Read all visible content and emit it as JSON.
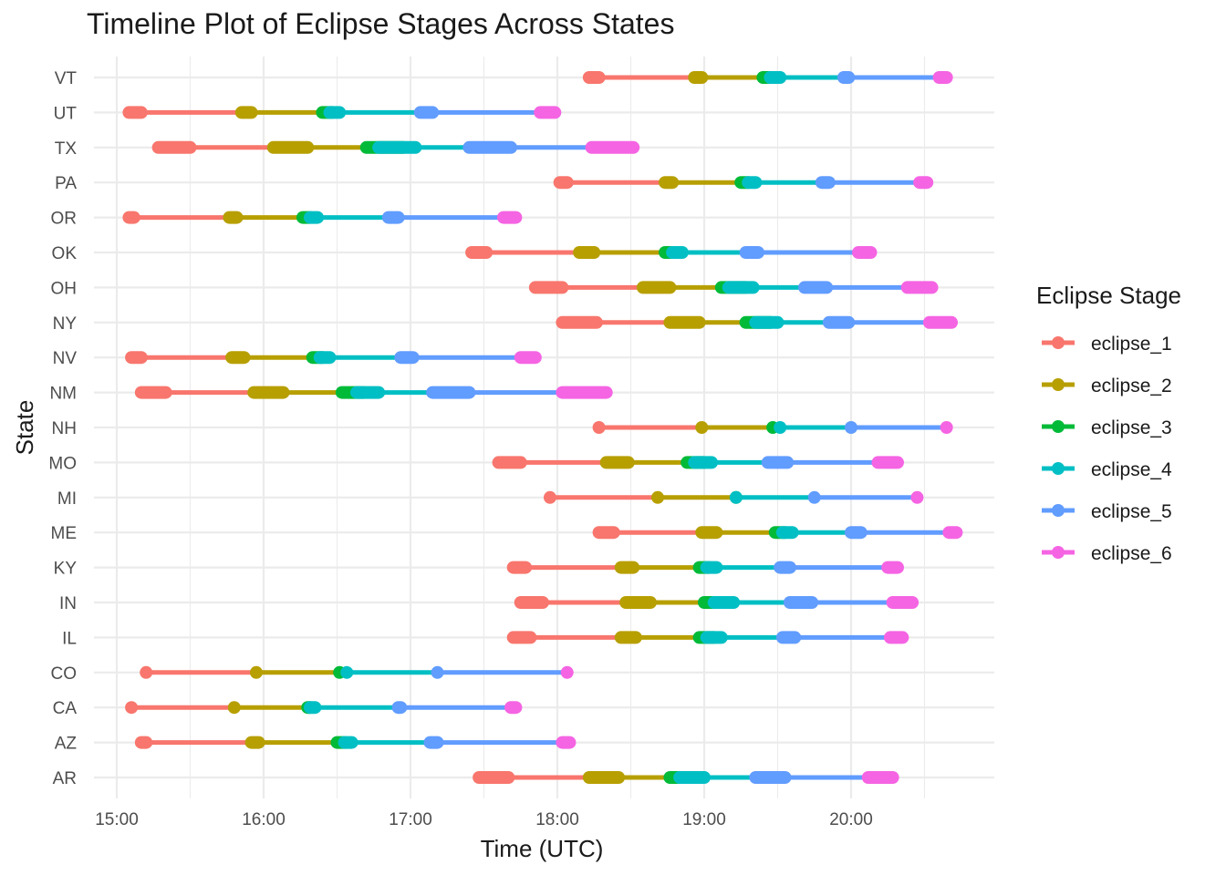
{
  "chart_data": {
    "type": "line",
    "title": "Timeline Plot of Eclipse Stages Across States",
    "xlabel": "Time (UTC)",
    "ylabel": "State",
    "x_ticks": [
      "15:00",
      "16:00",
      "17:00",
      "18:00",
      "19:00",
      "20:00"
    ],
    "xlim": [
      "14:58",
      "20:57"
    ],
    "grid": true,
    "legend": {
      "title": "Eclipse Stage",
      "placement": "right"
    },
    "series": [
      {
        "name": "eclipse_1",
        "color": "#F8766D"
      },
      {
        "name": "eclipse_2",
        "color": "#B79F00"
      },
      {
        "name": "eclipse_3",
        "color": "#00BA38"
      },
      {
        "name": "eclipse_4",
        "color": "#00BFC4"
      },
      {
        "name": "eclipse_5",
        "color": "#619CFF"
      },
      {
        "name": "eclipse_6",
        "color": "#F564E3"
      }
    ],
    "states": [
      {
        "state": "VT",
        "times": [
          [
            "18:13",
            "18:17"
          ],
          [
            "18:56",
            "18:59"
          ],
          [
            "19:24",
            "19:28"
          ],
          [
            "19:27",
            "19:31"
          ],
          [
            "19:57",
            "19:59"
          ],
          [
            "20:36",
            "20:39"
          ]
        ]
      },
      {
        "state": "UT",
        "times": [
          [
            "15:05",
            "15:10"
          ],
          [
            "15:51",
            "15:55"
          ],
          [
            "16:24",
            "16:28"
          ],
          [
            "16:27",
            "16:31"
          ],
          [
            "17:04",
            "17:09"
          ],
          [
            "17:53",
            "17:59"
          ]
        ]
      },
      {
        "state": "TX",
        "times": [
          [
            "15:17",
            "15:30"
          ],
          [
            "16:04",
            "16:18"
          ],
          [
            "16:42",
            "16:57"
          ],
          [
            "16:47",
            "17:02"
          ],
          [
            "17:24",
            "17:41"
          ],
          [
            "18:14",
            "18:31"
          ]
        ]
      },
      {
        "state": "PA",
        "times": [
          [
            "18:01",
            "18:04"
          ],
          [
            "18:44",
            "18:47"
          ],
          [
            "19:15",
            "19:18"
          ],
          [
            "19:18",
            "19:21"
          ],
          [
            "19:48",
            "19:51"
          ],
          [
            "20:28",
            "20:31"
          ]
        ]
      },
      {
        "state": "OR",
        "times": [
          [
            "15:05",
            "15:07"
          ],
          [
            "15:46",
            "15:49"
          ],
          [
            "16:16",
            "16:19"
          ],
          [
            "16:19",
            "16:22"
          ],
          [
            "16:51",
            "16:55"
          ],
          [
            "17:38",
            "17:43"
          ]
        ]
      },
      {
        "state": "OK",
        "times": [
          [
            "17:25",
            "17:31"
          ],
          [
            "18:09",
            "18:15"
          ],
          [
            "18:44",
            "18:48"
          ],
          [
            "18:47",
            "18:51"
          ],
          [
            "19:17",
            "19:22"
          ],
          [
            "20:03",
            "20:08"
          ]
        ]
      },
      {
        "state": "OH",
        "times": [
          [
            "17:51",
            "18:02"
          ],
          [
            "18:35",
            "18:46"
          ],
          [
            "19:07",
            "19:17"
          ],
          [
            "19:10",
            "19:20"
          ],
          [
            "19:41",
            "19:50"
          ],
          [
            "20:23",
            "20:33"
          ]
        ]
      },
      {
        "state": "NY",
        "times": [
          [
            "18:02",
            "18:16"
          ],
          [
            "18:46",
            "18:58"
          ],
          [
            "19:17",
            "19:27"
          ],
          [
            "19:21",
            "19:30"
          ],
          [
            "19:51",
            "19:59"
          ],
          [
            "20:32",
            "20:41"
          ]
        ]
      },
      {
        "state": "NV",
        "times": [
          [
            "15:06",
            "15:10"
          ],
          [
            "15:47",
            "15:52"
          ],
          [
            "16:20",
            "16:24"
          ],
          [
            "16:23",
            "16:27"
          ],
          [
            "16:56",
            "17:01"
          ],
          [
            "17:45",
            "17:51"
          ]
        ]
      },
      {
        "state": "NM",
        "times": [
          [
            "15:10",
            "15:20"
          ],
          [
            "15:56",
            "16:08"
          ],
          [
            "16:32",
            "16:41"
          ],
          [
            "16:38",
            "16:47"
          ],
          [
            "17:09",
            "17:24"
          ],
          [
            "18:02",
            "18:20"
          ]
        ]
      },
      {
        "state": "NH",
        "times": [
          [
            "18:17",
            "18:17"
          ],
          [
            "18:59",
            "18:59"
          ],
          [
            "19:28",
            "19:28"
          ],
          [
            "19:31",
            "19:31"
          ],
          [
            "20:00",
            "20:00"
          ],
          [
            "20:39",
            "20:39"
          ]
        ]
      },
      {
        "state": "MO",
        "times": [
          [
            "17:36",
            "17:45"
          ],
          [
            "18:20",
            "18:29"
          ],
          [
            "18:53",
            "19:00"
          ],
          [
            "18:56",
            "19:03"
          ],
          [
            "19:26",
            "19:34"
          ],
          [
            "20:11",
            "20:19"
          ]
        ]
      },
      {
        "state": "MI",
        "times": [
          [
            "17:57",
            "17:57"
          ],
          [
            "18:41",
            "18:41"
          ],
          [
            "19:13",
            "19:13"
          ],
          [
            "19:13",
            "19:13"
          ],
          [
            "19:45",
            "19:45"
          ],
          [
            "20:27",
            "20:27"
          ]
        ]
      },
      {
        "state": "ME",
        "times": [
          [
            "18:17",
            "18:23"
          ],
          [
            "18:59",
            "19:05"
          ],
          [
            "19:29",
            "19:33"
          ],
          [
            "19:32",
            "19:36"
          ],
          [
            "20:00",
            "20:04"
          ],
          [
            "20:40",
            "20:43"
          ]
        ]
      },
      {
        "state": "KY",
        "times": [
          [
            "17:42",
            "17:47"
          ],
          [
            "18:26",
            "18:31"
          ],
          [
            "18:58",
            "19:02"
          ],
          [
            "19:01",
            "19:05"
          ],
          [
            "19:31",
            "19:35"
          ],
          [
            "20:15",
            "20:19"
          ]
        ]
      },
      {
        "state": "IN",
        "times": [
          [
            "17:45",
            "17:54"
          ],
          [
            "18:28",
            "18:38"
          ],
          [
            "19:00",
            "19:09"
          ],
          [
            "19:04",
            "19:12"
          ],
          [
            "19:35",
            "19:44"
          ],
          [
            "20:17",
            "20:25"
          ]
        ]
      },
      {
        "state": "IL",
        "times": [
          [
            "17:42",
            "17:49"
          ],
          [
            "18:26",
            "18:32"
          ],
          [
            "18:58",
            "19:04"
          ],
          [
            "19:01",
            "19:07"
          ],
          [
            "19:32",
            "19:37"
          ],
          [
            "20:16",
            "20:21"
          ]
        ]
      },
      {
        "state": "CO",
        "times": [
          [
            "15:12",
            "15:12"
          ],
          [
            "15:57",
            "15:57"
          ],
          [
            "16:31",
            "16:31"
          ],
          [
            "16:34",
            "16:34"
          ],
          [
            "17:11",
            "17:11"
          ],
          [
            "18:04",
            "18:04"
          ]
        ]
      },
      {
        "state": "CA",
        "times": [
          [
            "15:06",
            "15:06"
          ],
          [
            "15:48",
            "15:48"
          ],
          [
            "16:18",
            "16:19"
          ],
          [
            "16:19",
            "16:21"
          ],
          [
            "16:55",
            "16:56"
          ],
          [
            "17:41",
            "17:43"
          ]
        ]
      },
      {
        "state": "AZ",
        "times": [
          [
            "15:10",
            "15:12"
          ],
          [
            "15:55",
            "15:58"
          ],
          [
            "16:30",
            "16:33"
          ],
          [
            "16:33",
            "16:36"
          ],
          [
            "17:08",
            "17:11"
          ],
          [
            "18:02",
            "18:05"
          ]
        ]
      },
      {
        "state": "AR",
        "times": [
          [
            "17:28",
            "17:40"
          ],
          [
            "18:13",
            "18:25"
          ],
          [
            "18:46",
            "18:56"
          ],
          [
            "18:50",
            "19:00"
          ],
          [
            "19:21",
            "19:33"
          ],
          [
            "20:07",
            "20:17"
          ]
        ]
      }
    ]
  }
}
